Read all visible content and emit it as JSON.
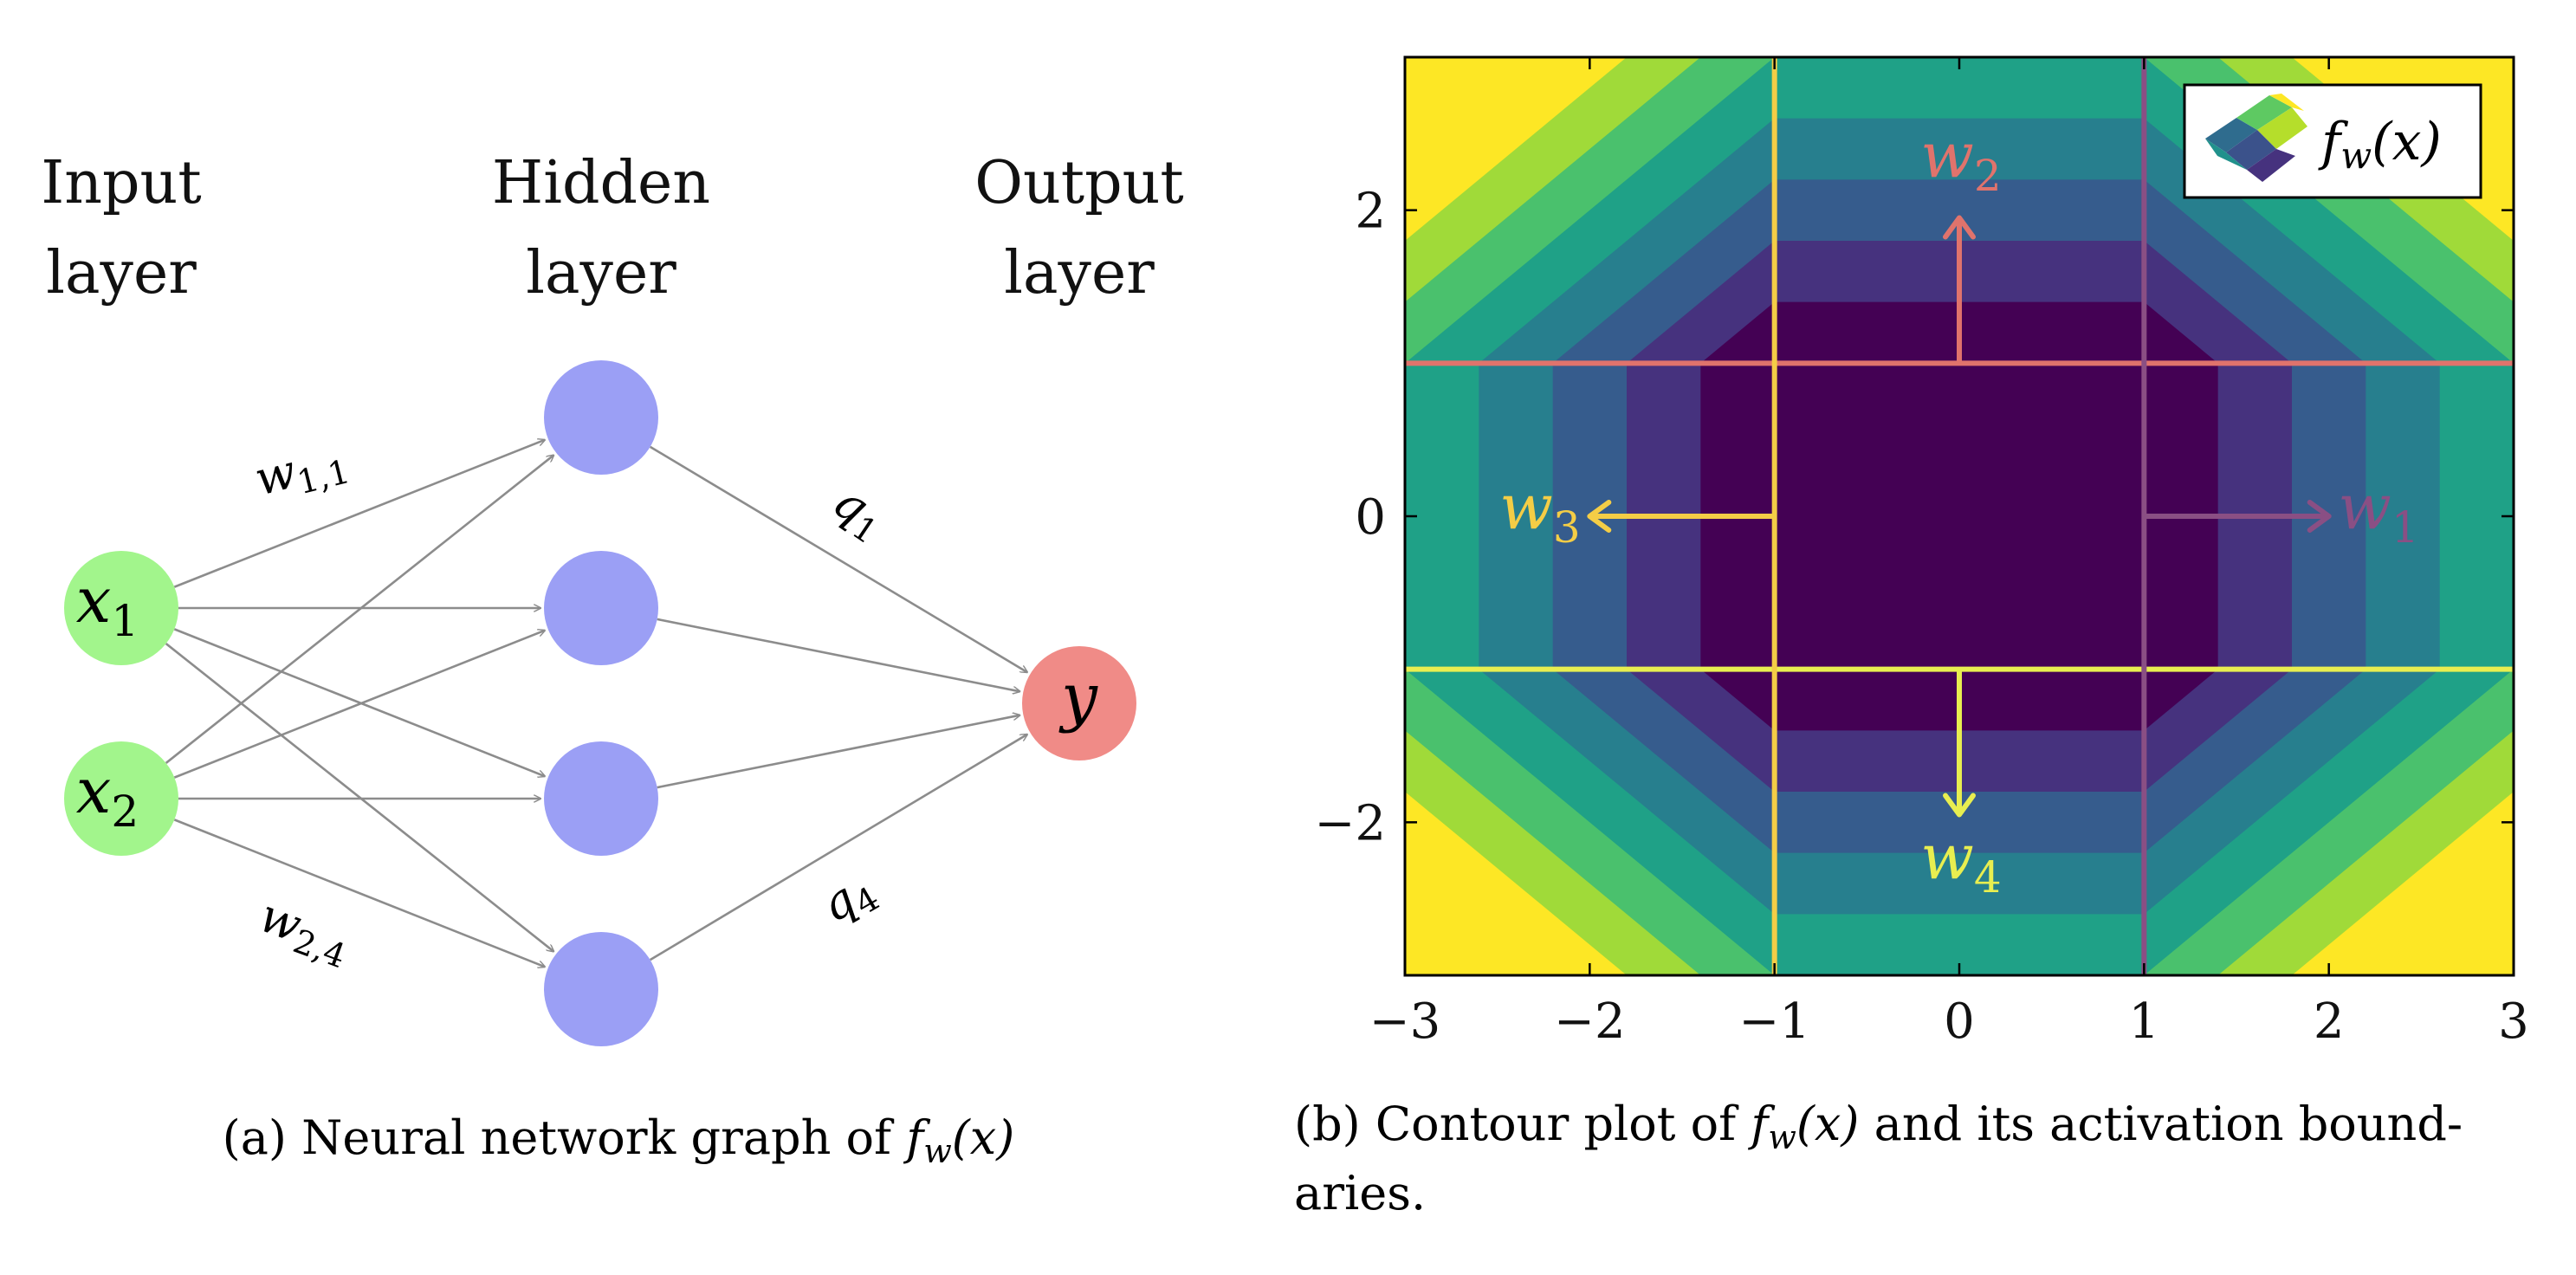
{
  "panel_a": {
    "layers": [
      {
        "line1": "Input",
        "line2": "layer"
      },
      {
        "line1": "Hidden",
        "line2": "layer"
      },
      {
        "line1": "Output",
        "line2": "layer"
      }
    ],
    "inputs": [
      {
        "var": "x",
        "sub": "1"
      },
      {
        "var": "x",
        "sub": "2"
      }
    ],
    "hidden_count": 4,
    "output": {
      "var": "y"
    },
    "edge_labels": [
      {
        "var": "w",
        "sub": "1,1"
      },
      {
        "var": "w",
        "sub": "2,4"
      },
      {
        "var": "q",
        "sub": "1"
      },
      {
        "var": "q",
        "sub": "4"
      }
    ],
    "caption": {
      "prefix": "(a) Neural network graph of ",
      "f": "f",
      "fsub": "w",
      "arg": "(x)"
    },
    "colors": {
      "input": "#a2f58c",
      "hidden": "#9b9ff5",
      "output": "#f08b87",
      "edge": "#8c8c8c"
    }
  },
  "panel_b": {
    "caption": {
      "prefix": "(b) Contour plot of ",
      "f": "f",
      "fsub": "w",
      "arg": "(x)",
      "suffix_line1": " and its activation bound-",
      "line2": "aries."
    },
    "legend": {
      "f": "f",
      "fsub": "w",
      "arg": "(x)"
    },
    "vectors": [
      {
        "var": "w",
        "sub": "2",
        "color": "#e0736c"
      },
      {
        "var": "w",
        "sub": "3",
        "color": "#f4cd46"
      },
      {
        "var": "w",
        "sub": "1",
        "color": "#8a4f84"
      },
      {
        "var": "w",
        "sub": "4",
        "color": "#e8ee50"
      }
    ],
    "viridis_levels": [
      "#440154",
      "#46327e",
      "#365c8d",
      "#277f8e",
      "#1fa187",
      "#4ac16d",
      "#a0da39",
      "#fde725"
    ]
  },
  "chart_data": {
    "type": "heatmap",
    "title": "",
    "xlabel": "",
    "ylabel": "",
    "xlim": [
      -3,
      3
    ],
    "ylim": [
      -3,
      3
    ],
    "xticks": [
      -3,
      -2,
      -1,
      0,
      1,
      2,
      3
    ],
    "yticks": [
      -2,
      0,
      2
    ],
    "xtick_labels": [
      "−3",
      "−2",
      "−1",
      "0",
      "1",
      "2",
      "3"
    ],
    "ytick_labels": [
      "−2",
      "0",
      "2"
    ],
    "legend_position": "top-right",
    "boundaries": [
      {
        "orientation": "horizontal",
        "value": 1,
        "weight": "w2",
        "normal_direction": "up",
        "color": "#e0736c"
      },
      {
        "orientation": "horizontal",
        "value": -1,
        "weight": "w4",
        "normal_direction": "down",
        "color": "#e8ee50"
      },
      {
        "orientation": "vertical",
        "value": -1,
        "weight": "w3",
        "normal_direction": "left",
        "color": "#f4cd46"
      },
      {
        "orientation": "vertical",
        "value": 1,
        "weight": "w1",
        "normal_direction": "right",
        "color": "#8a4f84"
      }
    ],
    "contour_spacing": 0.4,
    "flat_region": {
      "x": [
        -1,
        1
      ],
      "y": [
        -1,
        1
      ]
    }
  }
}
